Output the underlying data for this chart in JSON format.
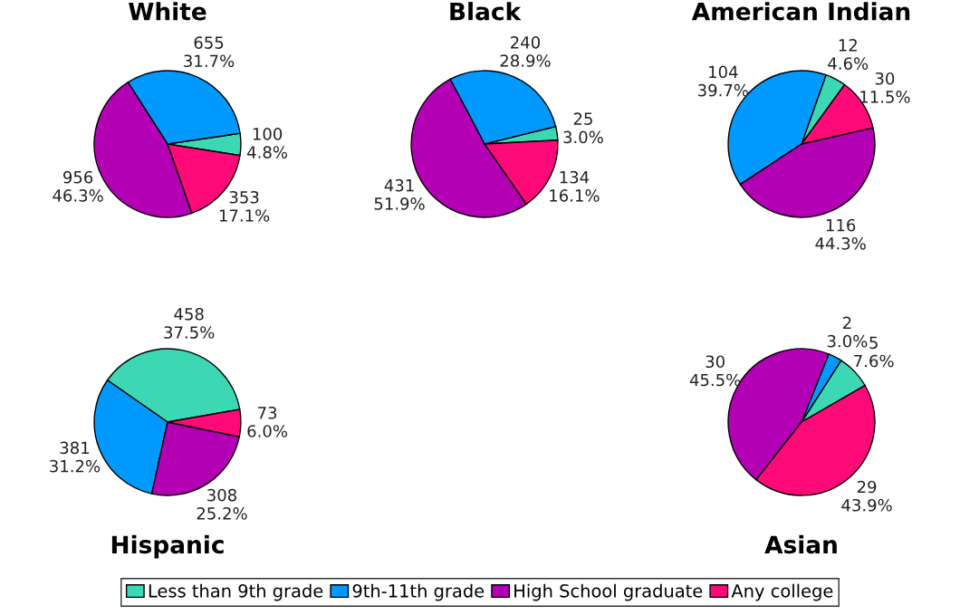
{
  "chart_data": [
    {
      "type": "pie",
      "title": "White",
      "categories": [
        "Less than 9th grade",
        "9th-11th grade",
        "High School graduate",
        "Any college"
      ],
      "values": [
        100,
        655,
        956,
        353
      ],
      "value_labels": [
        "100\n4.8%",
        "655\n31.7%",
        "956\n46.3%",
        "353\n17.1%"
      ],
      "colors": [
        "#3cd8b4",
        "#0099ff",
        "#b400b4",
        "#ff0a78"
      ],
      "legend": "bottom"
    },
    {
      "type": "pie",
      "title": "Black",
      "categories": [
        null,
        null,
        null,
        null
      ],
      "values": [
        25,
        240,
        431,
        134
      ],
      "value_labels": [
        "25\n3.0%",
        "240\n28.9%",
        "431\n51.9%",
        "134\n16.1%"
      ],
      "colors": [
        "#3cd8b4",
        "#0099ff",
        "#b400b4",
        "#ff0a78"
      ]
    },
    {
      "type": "pie",
      "title": "American Indian",
      "categories": [
        null,
        null,
        null,
        null
      ],
      "values": [
        12,
        104,
        116,
        30
      ],
      "value_labels": [
        "12\n4.6%",
        "104\n39.7%",
        "116\n44.3%",
        "30\n11.5%"
      ],
      "colors": [
        "#3cd8b4",
        "#0099ff",
        "#b400b4",
        "#ff0a78"
      ]
    },
    {
      "type": "pie",
      "title": "Hispanic",
      "categories": [
        null,
        null,
        null,
        null
      ],
      "values": [
        458,
        381,
        308,
        73
      ],
      "value_labels": [
        "458\n37.5%",
        "381\n31.2%",
        "308\n25.2%",
        "73\n6.0%"
      ],
      "colors": [
        "#3cd8b4",
        "#0099ff",
        "#b400b4",
        "#ff0a78"
      ]
    },
    {
      "type": "pie",
      "title": "Asian",
      "categories": [
        null,
        null,
        null,
        null
      ],
      "values": [
        5,
        2,
        30,
        29
      ],
      "value_labels": [
        "5\n7.6%",
        "2\n3.0%",
        "30\n45.5%",
        "29\n43.9%"
      ],
      "colors": [
        "#3cd8b4",
        "#0099ff",
        "#b400b4",
        "#ff0a78"
      ]
    }
  ]
}
